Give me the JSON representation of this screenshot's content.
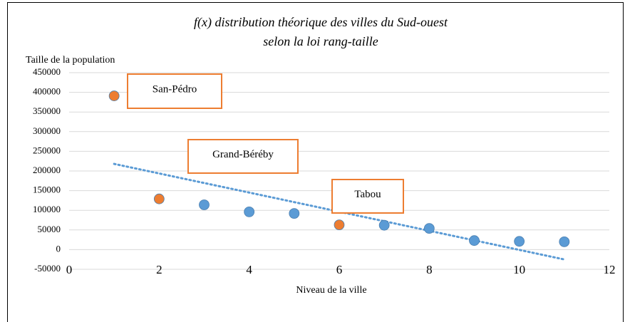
{
  "chart_data": {
    "type": "scatter",
    "title": [
      "f(x) distribution théorique des villes du Sud-ouest",
      "selon la loi rang-taille"
    ],
    "y_label": "Taille de la population",
    "x_label": "Niveau de la ville",
    "x": [
      1,
      2,
      3,
      4,
      5,
      6,
      7,
      8,
      9,
      10,
      11
    ],
    "values": [
      391000,
      129000,
      114000,
      96000,
      92000,
      63000,
      62000,
      54000,
      23000,
      21000,
      20000
    ],
    "colors": [
      "#ed7d31",
      "#ed7d31",
      "#5b9bd5",
      "#5b9bd5",
      "#5b9bd5",
      "#ed7d31",
      "#5b9bd5",
      "#5b9bd5",
      "#5b9bd5",
      "#5b9bd5",
      "#5b9bd5"
    ],
    "trendline": {
      "x": [
        1,
        11
      ],
      "values": [
        218000,
        -25000
      ],
      "color": "#5b9bd5",
      "style": "dotted"
    },
    "annotations": [
      "San-Pédro",
      "Grand-Béréby",
      "Tabou"
    ],
    "annotation_border": "#ed7d31",
    "xlim": [
      0,
      12
    ],
    "xticks": [
      0,
      2,
      4,
      6,
      8,
      10,
      12
    ],
    "ylim": [
      -50000,
      450000
    ],
    "yticks": [
      -50000,
      0,
      50000,
      100000,
      150000,
      200000,
      250000,
      300000,
      350000,
      400000,
      450000
    ],
    "grid": true
  }
}
